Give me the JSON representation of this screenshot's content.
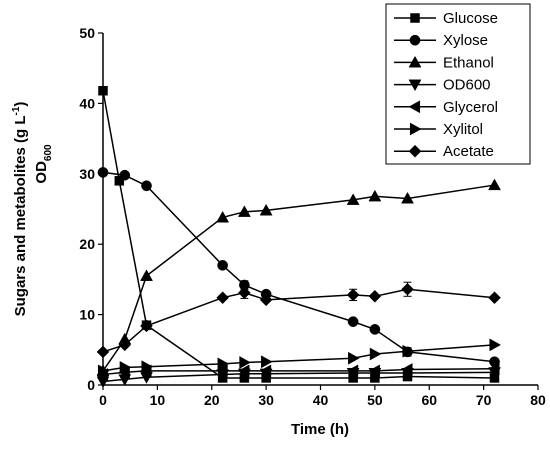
{
  "chart_data": {
    "type": "line",
    "xlabel": "Time (h)",
    "ylabel_main": "Sugars and metabolites (g L",
    "ylabel_sup": "-1",
    "ylabel_close": ")",
    "ylabel2_base": "OD",
    "ylabel2_sub": "600",
    "xlim": [
      0,
      80
    ],
    "ylim": [
      0,
      50
    ],
    "xticks": [
      "0",
      "10",
      "20",
      "30",
      "40",
      "50",
      "60",
      "70",
      "80"
    ],
    "yticks": [
      "0",
      "10",
      "20",
      "30",
      "40",
      "50"
    ],
    "legend_position": "top-right",
    "series": [
      {
        "name": "Glucose",
        "marker": "square",
        "x": [
          0,
          3,
          8,
          22,
          26,
          30,
          46,
          50,
          56,
          72
        ],
        "y": [
          41.8,
          29,
          8.5,
          1,
          1,
          1,
          1,
          1,
          1.2,
          1
        ]
      },
      {
        "name": "Xylose",
        "marker": "circle",
        "x": [
          0,
          4,
          8,
          22,
          26,
          30,
          46,
          50,
          56,
          72
        ],
        "y": [
          30.2,
          29.8,
          28.3,
          17,
          14.2,
          12.9,
          9,
          7.9,
          4.7,
          3.3
        ],
        "err": [
          0,
          0,
          0,
          0,
          0.6,
          0,
          0,
          0,
          0.6,
          0
        ]
      },
      {
        "name": "Ethanol",
        "marker": "triangle-up",
        "x": [
          0,
          4,
          8,
          22,
          26,
          30,
          46,
          50,
          56,
          72
        ],
        "y": [
          2,
          6.5,
          15.5,
          23.8,
          24.6,
          24.8,
          26.3,
          26.8,
          26.5,
          28.4
        ]
      },
      {
        "name": "OD600",
        "marker": "triangle-down",
        "x": [
          0,
          4,
          8,
          22,
          26,
          30,
          46,
          50,
          56,
          72
        ],
        "y": [
          0.5,
          0.8,
          1.1,
          1.5,
          1.6,
          1.6,
          1.7,
          1.7,
          1.7,
          1.8
        ]
      },
      {
        "name": "Glycerol",
        "marker": "triangle-left",
        "x": [
          0,
          4,
          8,
          22,
          26,
          30,
          46,
          50,
          56,
          72
        ],
        "y": [
          1.5,
          1.8,
          2,
          2,
          2,
          2,
          2,
          2,
          2.2,
          2.3
        ]
      },
      {
        "name": "Xylitol",
        "marker": "triangle-right",
        "x": [
          0,
          4,
          8,
          22,
          26,
          30,
          46,
          50,
          56,
          72
        ],
        "y": [
          2,
          2.5,
          2.6,
          3,
          3.2,
          3.3,
          3.8,
          4.4,
          4.8,
          5.7
        ]
      },
      {
        "name": "Acetate",
        "marker": "diamond",
        "x": [
          0,
          4,
          8,
          22,
          26,
          30,
          46,
          50,
          56,
          72
        ],
        "y": [
          4.7,
          5.7,
          8.4,
          12.4,
          13.1,
          12.1,
          12.8,
          12.6,
          13.6,
          12.4
        ],
        "err": [
          0,
          0,
          0,
          0,
          0.8,
          0,
          0.8,
          0,
          1,
          0
        ]
      }
    ]
  }
}
